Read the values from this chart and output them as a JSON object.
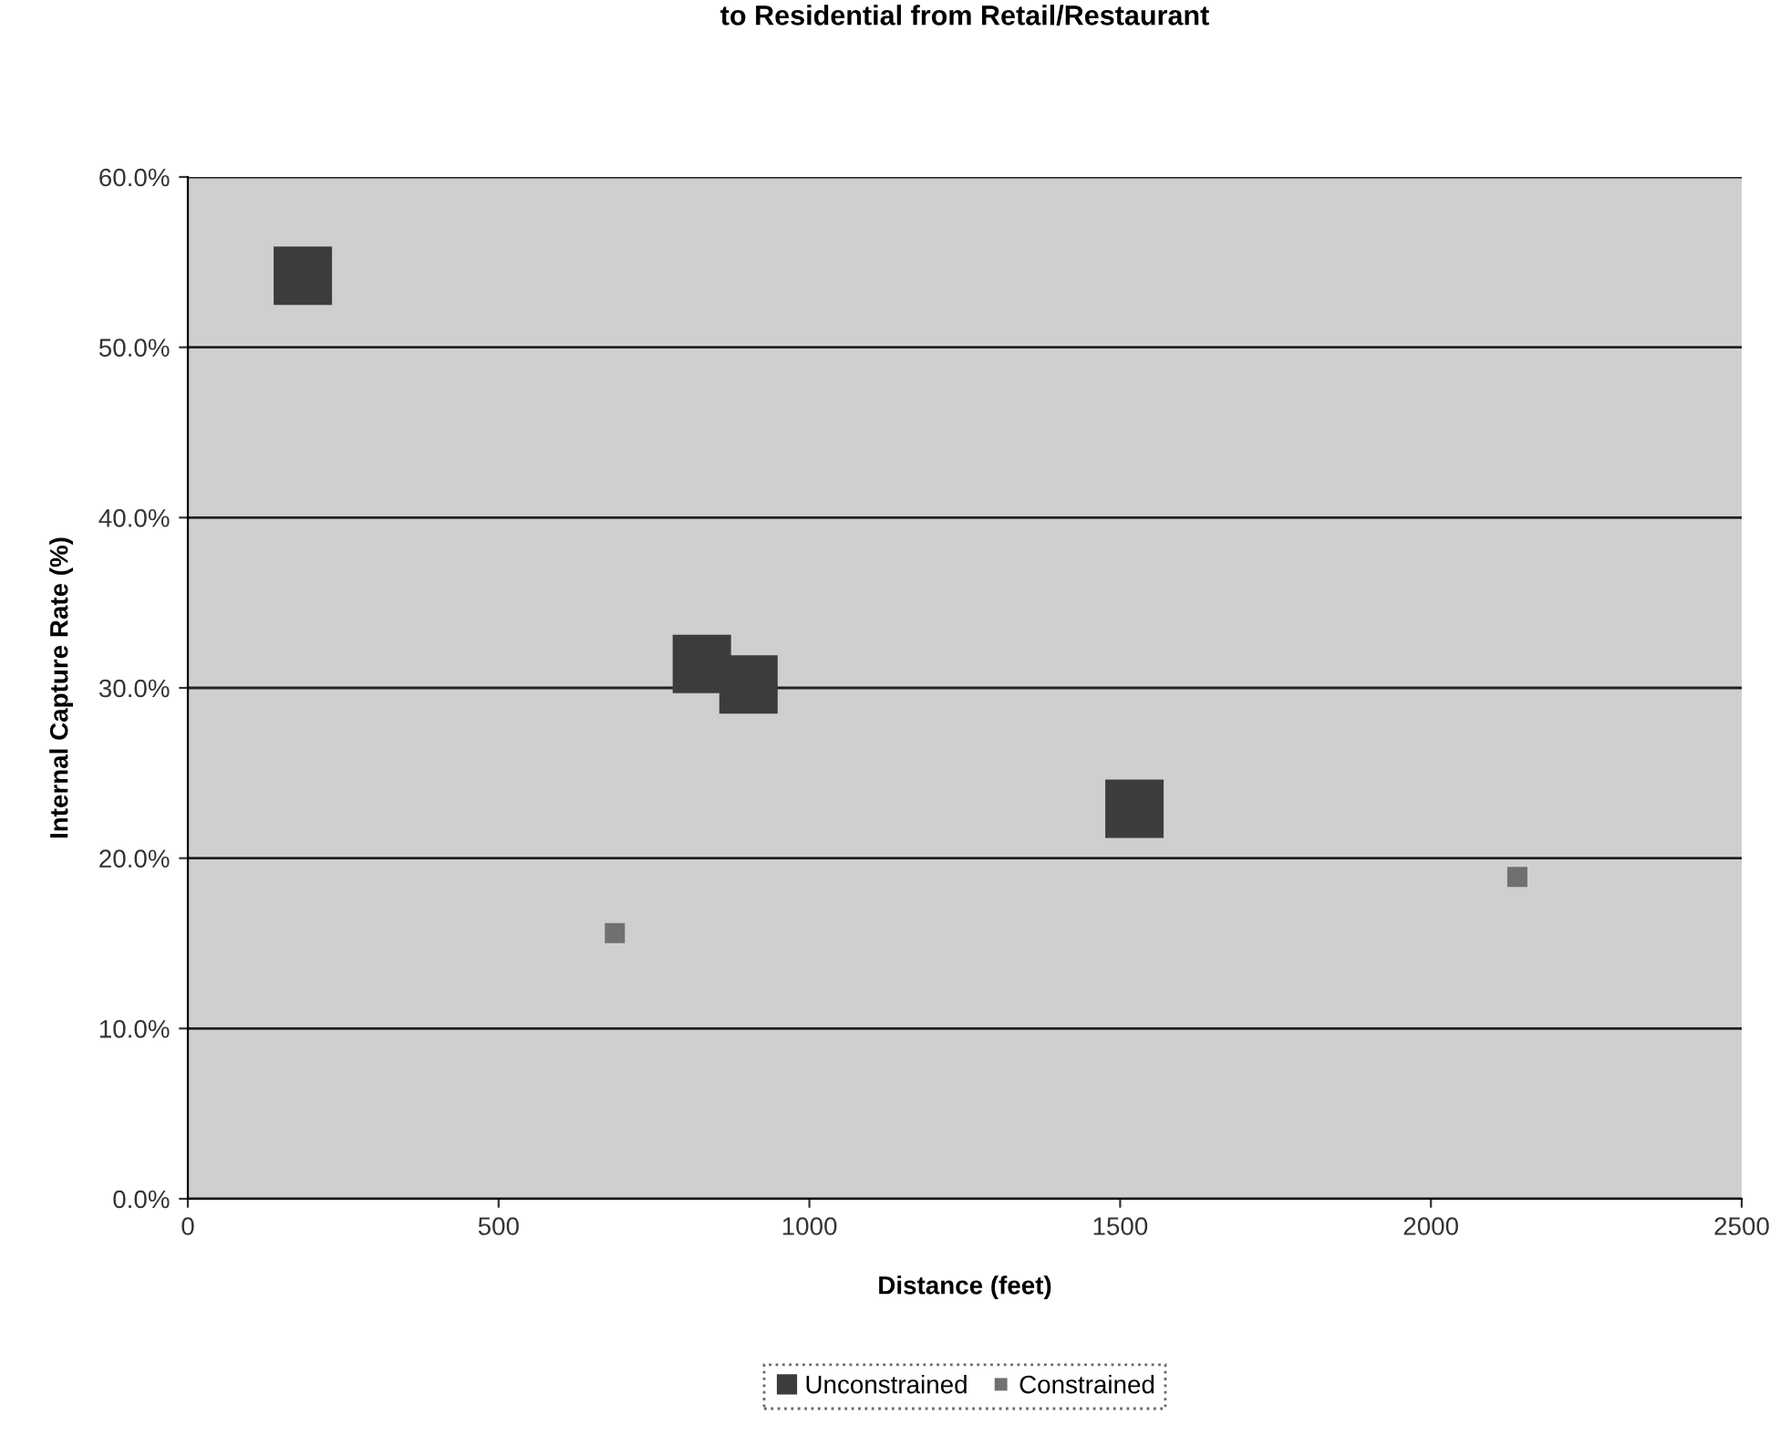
{
  "chart_data": {
    "type": "scatter",
    "title": "to Residential from Retail/Restaurant",
    "xlabel": "Distance (feet)",
    "ylabel": "Internal Capture Rate (%)",
    "marker": "square",
    "grid": "y",
    "legend": "bottom",
    "xlim": [
      0,
      2500
    ],
    "xticks": [
      0,
      500,
      1000,
      1500,
      2000,
      2500
    ],
    "ylim": [
      0,
      60
    ],
    "yticks": [
      {
        "value": 0,
        "label": "0.0%"
      },
      {
        "value": 10,
        "label": "10.0%"
      },
      {
        "value": 20,
        "label": "20.0%"
      },
      {
        "value": 30,
        "label": "30.0%"
      },
      {
        "value": 40,
        "label": "40.0%"
      },
      {
        "value": 50,
        "label": "50.0%"
      },
      {
        "value": 60,
        "label": "60.0%"
      }
    ],
    "series": [
      {
        "name": "Unconstrained",
        "color": "#3c3c3c",
        "x": [
          185,
          827,
          902,
          1523
        ],
        "values": [
          54.2,
          31.4,
          30.2,
          22.9
        ]
      },
      {
        "name": "Constrained",
        "color": "#707070",
        "x": [
          687,
          2139
        ],
        "values": [
          15.6,
          18.9
        ]
      }
    ]
  }
}
